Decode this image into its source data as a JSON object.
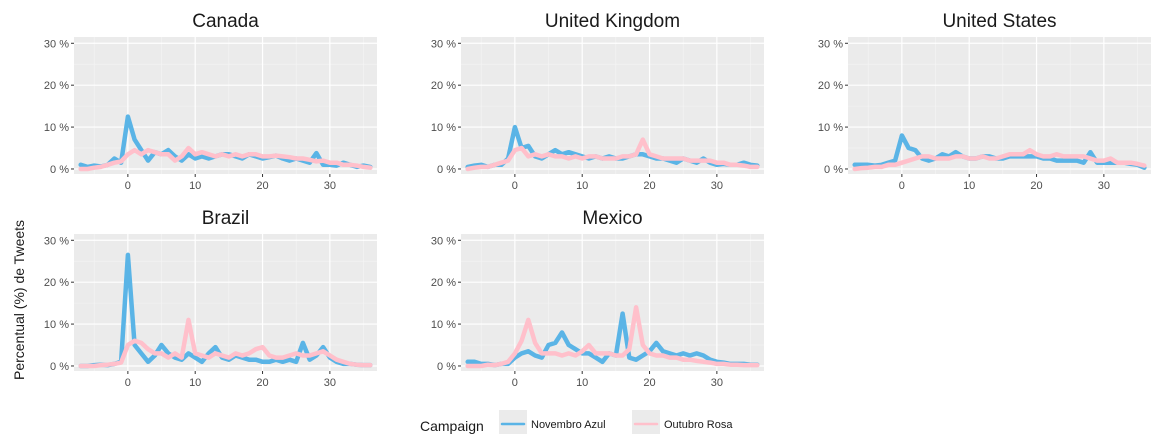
{
  "chart_data": {
    "type": "line",
    "ylabel": "Percentual (%) de Tweets",
    "xlabel": "",
    "x_ticks": [
      0,
      10,
      20,
      30
    ],
    "y_ticks": [
      0,
      10,
      20,
      30
    ],
    "y_tick_labels": [
      "0 %",
      "10 %",
      "20 %",
      "30 %"
    ],
    "xlim": [
      -8,
      37
    ],
    "ylim": [
      -1.2,
      31.5
    ],
    "grid": true,
    "legend": {
      "title": "Campaign",
      "position": "bottom",
      "entries": [
        {
          "name": "Novembro Azul",
          "color": "#5ab4e6"
        },
        {
          "name": "Outubro Rosa",
          "color": "#ffc0cb"
        }
      ]
    },
    "panels": [
      {
        "title": "Canada",
        "series": [
          {
            "name": "Novembro Azul",
            "color": "#5ab4e6",
            "x": [
              -7,
              -6,
              -5,
              -4,
              -3,
              -2,
              -1,
              0,
              1,
              2,
              3,
              4,
              5,
              6,
              7,
              8,
              9,
              10,
              11,
              12,
              13,
              14,
              15,
              16,
              17,
              18,
              19,
              20,
              21,
              22,
              23,
              24,
              25,
              26,
              27,
              28,
              29,
              30,
              31,
              32,
              33,
              34,
              35,
              36
            ],
            "y": [
              1,
              0.5,
              0.8,
              0.6,
              1,
              2.5,
              1.5,
              12.5,
              7,
              4.5,
              2,
              4,
              3.5,
              4.5,
              3,
              2,
              3.5,
              2.5,
              3,
              2.5,
              3,
              3.5,
              3.5,
              3,
              2.5,
              3.5,
              3,
              2.5,
              2.8,
              3.2,
              2.5,
              2,
              2.5,
              2,
              1.5,
              3.8,
              1,
              1,
              0.8,
              1.5,
              1,
              0.5,
              0.8,
              0.5
            ]
          },
          {
            "name": "Outubro Rosa",
            "color": "#ffc0cb",
            "x": [
              -7,
              -6,
              -5,
              -4,
              -3,
              -2,
              -1,
              0,
              1,
              2,
              3,
              4,
              5,
              6,
              7,
              8,
              9,
              10,
              11,
              12,
              13,
              14,
              15,
              16,
              17,
              18,
              19,
              20,
              21,
              22,
              23,
              24,
              25,
              26,
              27,
              28,
              29,
              30,
              31,
              32,
              33,
              34,
              35,
              36
            ],
            "y": [
              0,
              0,
              0.3,
              0.5,
              1,
              1.5,
              1.8,
              3.5,
              4.5,
              3.5,
              4.5,
              4,
              3.5,
              3.5,
              2,
              3,
              5,
              3.5,
              4,
              3.5,
              3,
              3.5,
              3,
              3.5,
              3,
              3.5,
              3.5,
              3,
              3,
              3.2,
              3,
              2.8,
              2.5,
              2.5,
              2.2,
              1.8,
              2,
              1.5,
              1.5,
              1,
              1,
              0.8,
              0.5,
              0.3
            ]
          }
        ]
      },
      {
        "title": "United Kingdom",
        "series": [
          {
            "name": "Novembro Azul",
            "color": "#5ab4e6",
            "x": [
              -7,
              -6,
              -5,
              -4,
              -3,
              -2,
              -1,
              0,
              1,
              2,
              3,
              4,
              5,
              6,
              7,
              8,
              9,
              10,
              11,
              12,
              13,
              14,
              15,
              16,
              17,
              18,
              19,
              20,
              21,
              22,
              23,
              24,
              25,
              26,
              27,
              28,
              29,
              30,
              31,
              32,
              33,
              34,
              35,
              36
            ],
            "y": [
              0.5,
              0.8,
              1,
              0.5,
              1,
              1,
              2.5,
              10,
              5,
              5.5,
              3,
              2.5,
              3.5,
              4.5,
              3.5,
              4,
              3.5,
              3,
              2.5,
              3,
              2.5,
              3,
              2.5,
              2.5,
              3,
              3.5,
              3.5,
              3,
              2.5,
              2.5,
              2,
              1.5,
              2.5,
              2,
              1.5,
              2.5,
              1.5,
              1,
              1.2,
              1,
              1,
              1.5,
              1,
              0.8
            ]
          },
          {
            "name": "Outubro Rosa",
            "color": "#ffc0cb",
            "x": [
              -7,
              -6,
              -5,
              -4,
              -3,
              -2,
              -1,
              0,
              1,
              2,
              3,
              4,
              5,
              6,
              7,
              8,
              9,
              10,
              11,
              12,
              13,
              14,
              15,
              16,
              17,
              18,
              19,
              20,
              21,
              22,
              23,
              24,
              25,
              26,
              27,
              28,
              29,
              30,
              31,
              32,
              33,
              34,
              35,
              36
            ],
            "y": [
              0,
              0.3,
              0.5,
              0.5,
              1,
              1.5,
              2,
              4.5,
              5,
              3,
              3.5,
              3,
              3.5,
              3,
              3,
              2.5,
              3,
              2.5,
              3,
              3,
              2.5,
              2.5,
              2.5,
              3,
              3,
              3.5,
              7,
              3.5,
              3,
              2.5,
              2.5,
              2.5,
              2.5,
              2,
              2,
              2,
              2,
              1.5,
              1.5,
              1,
              1,
              0.8,
              0.5,
              0.5
            ]
          }
        ]
      },
      {
        "title": "United States",
        "series": [
          {
            "name": "Novembro Azul",
            "color": "#5ab4e6",
            "x": [
              -7,
              -6,
              -5,
              -4,
              -3,
              -2,
              -1,
              0,
              1,
              2,
              3,
              4,
              5,
              6,
              7,
              8,
              9,
              10,
              11,
              12,
              13,
              14,
              15,
              16,
              17,
              18,
              19,
              20,
              21,
              22,
              23,
              24,
              25,
              26,
              27,
              28,
              29,
              30,
              31,
              32,
              33,
              34,
              35,
              36
            ],
            "y": [
              1,
              1,
              1,
              0.8,
              1,
              1.5,
              2,
              8,
              5,
              4.5,
              2.5,
              2,
              2.5,
              3.5,
              3,
              4,
              3,
              2.5,
              2.5,
              3,
              3,
              2.5,
              2.5,
              3,
              3,
              3,
              3,
              3,
              2.5,
              2.5,
              2,
              2,
              2,
              2,
              1.5,
              4,
              1.5,
              1.5,
              1.5,
              1.5,
              1.5,
              1.2,
              1,
              0.3
            ]
          },
          {
            "name": "Outubro Rosa",
            "color": "#ffc0cb",
            "x": [
              -7,
              -6,
              -5,
              -4,
              -3,
              -2,
              -1,
              0,
              1,
              2,
              3,
              4,
              5,
              6,
              7,
              8,
              9,
              10,
              11,
              12,
              13,
              14,
              15,
              16,
              17,
              18,
              19,
              20,
              21,
              22,
              23,
              24,
              25,
              26,
              27,
              28,
              29,
              30,
              31,
              32,
              33,
              34,
              35,
              36
            ],
            "y": [
              0,
              0.2,
              0.3,
              0.5,
              0.5,
              1,
              1,
              1.5,
              2,
              2.5,
              3,
              3,
              2.5,
              2.5,
              2.5,
              3,
              3,
              2.5,
              2.5,
              3,
              2.5,
              2.5,
              3,
              3.5,
              3.5,
              3.5,
              4.5,
              3.5,
              3,
              3,
              3.5,
              3,
              3,
              3,
              3,
              2.5,
              2,
              2,
              2.5,
              1.5,
              1.5,
              1.5,
              1.2,
              0.8
            ]
          }
        ]
      },
      {
        "title": "Brazil",
        "series": [
          {
            "name": "Novembro Azul",
            "color": "#5ab4e6",
            "x": [
              -7,
              -6,
              -5,
              -4,
              -3,
              -2,
              -1,
              0,
              1,
              2,
              3,
              4,
              5,
              6,
              7,
              8,
              9,
              10,
              11,
              12,
              13,
              14,
              15,
              16,
              17,
              18,
              19,
              20,
              21,
              22,
              23,
              24,
              25,
              26,
              27,
              28,
              29,
              30,
              31,
              32,
              33,
              34,
              35,
              36
            ],
            "y": [
              0,
              0,
              0.2,
              0.3,
              0.2,
              0.5,
              1,
              26.5,
              5,
              3,
              1,
              2.5,
              5,
              3,
              2,
              1.5,
              3,
              2,
              1,
              3,
              4.5,
              2,
              1.5,
              2.5,
              2,
              1.5,
              1.5,
              1,
              1,
              1.5,
              1,
              1.5,
              1,
              5.5,
              1.5,
              2.5,
              4.5,
              2,
              1,
              0.5,
              0.5,
              0.3,
              0.2,
              0.2
            ]
          },
          {
            "name": "Outubro Rosa",
            "color": "#ffc0cb",
            "x": [
              -7,
              -6,
              -5,
              -4,
              -3,
              -2,
              -1,
              0,
              1,
              2,
              3,
              4,
              5,
              6,
              7,
              8,
              9,
              10,
              11,
              12,
              13,
              14,
              15,
              16,
              17,
              18,
              19,
              20,
              21,
              22,
              23,
              24,
              25,
              26,
              27,
              28,
              29,
              30,
              31,
              32,
              33,
              34,
              35,
              36
            ],
            "y": [
              0,
              0,
              0,
              0.2,
              0.3,
              0.5,
              0.8,
              5,
              6,
              5.5,
              4,
              3,
              3,
              2,
              3,
              2,
              11,
              3,
              2.5,
              2,
              3,
              2.5,
              2,
              3,
              2.5,
              3,
              4,
              4.5,
              2.5,
              2,
              2,
              2.5,
              3,
              2.5,
              2.5,
              3,
              3.5,
              2.5,
              1.5,
              1,
              0.5,
              0.3,
              0.2,
              0.2
            ]
          }
        ]
      },
      {
        "title": "Mexico",
        "series": [
          {
            "name": "Novembro Azul",
            "color": "#5ab4e6",
            "x": [
              -7,
              -6,
              -5,
              -4,
              -3,
              -2,
              -1,
              0,
              1,
              2,
              3,
              4,
              5,
              6,
              7,
              8,
              9,
              10,
              11,
              12,
              13,
              14,
              15,
              16,
              17,
              18,
              19,
              20,
              21,
              22,
              23,
              24,
              25,
              26,
              27,
              28,
              29,
              30,
              31,
              32,
              33,
              34,
              35,
              36
            ],
            "y": [
              1,
              1,
              0.5,
              0.5,
              0.2,
              0.5,
              0.5,
              2,
              3,
              3.5,
              2.5,
              2,
              5,
              5.5,
              8,
              5,
              4,
              3,
              3,
              2,
              1,
              3,
              2.5,
              12.5,
              2,
              1.5,
              2.5,
              3.5,
              5.5,
              3.5,
              3,
              2.5,
              3,
              2.5,
              3,
              2.5,
              1.5,
              1,
              0.8,
              0.5,
              0.5,
              0.5,
              0.3,
              0.3
            ]
          },
          {
            "name": "Outubro Rosa",
            "color": "#ffc0cb",
            "x": [
              -7,
              -6,
              -5,
              -4,
              -3,
              -2,
              -1,
              0,
              1,
              2,
              3,
              4,
              5,
              6,
              7,
              8,
              9,
              10,
              11,
              12,
              13,
              14,
              15,
              16,
              17,
              18,
              19,
              20,
              21,
              22,
              23,
              24,
              25,
              26,
              27,
              28,
              29,
              30,
              31,
              32,
              33,
              34,
              35,
              36
            ],
            "y": [
              0,
              0,
              0,
              0.3,
              0.2,
              0.5,
              1,
              3,
              6,
              11,
              5.5,
              3,
              3,
              3,
              2.5,
              3,
              2.5,
              3.5,
              5,
              3,
              3,
              3,
              2.5,
              2.5,
              4,
              14,
              5,
              3,
              2.5,
              2.5,
              2,
              2,
              1.5,
              1.5,
              1.2,
              1,
              0.8,
              0.5,
              0.5,
              0.3,
              0.3,
              0.2,
              0.2,
              0.2
            ]
          }
        ]
      }
    ]
  }
}
